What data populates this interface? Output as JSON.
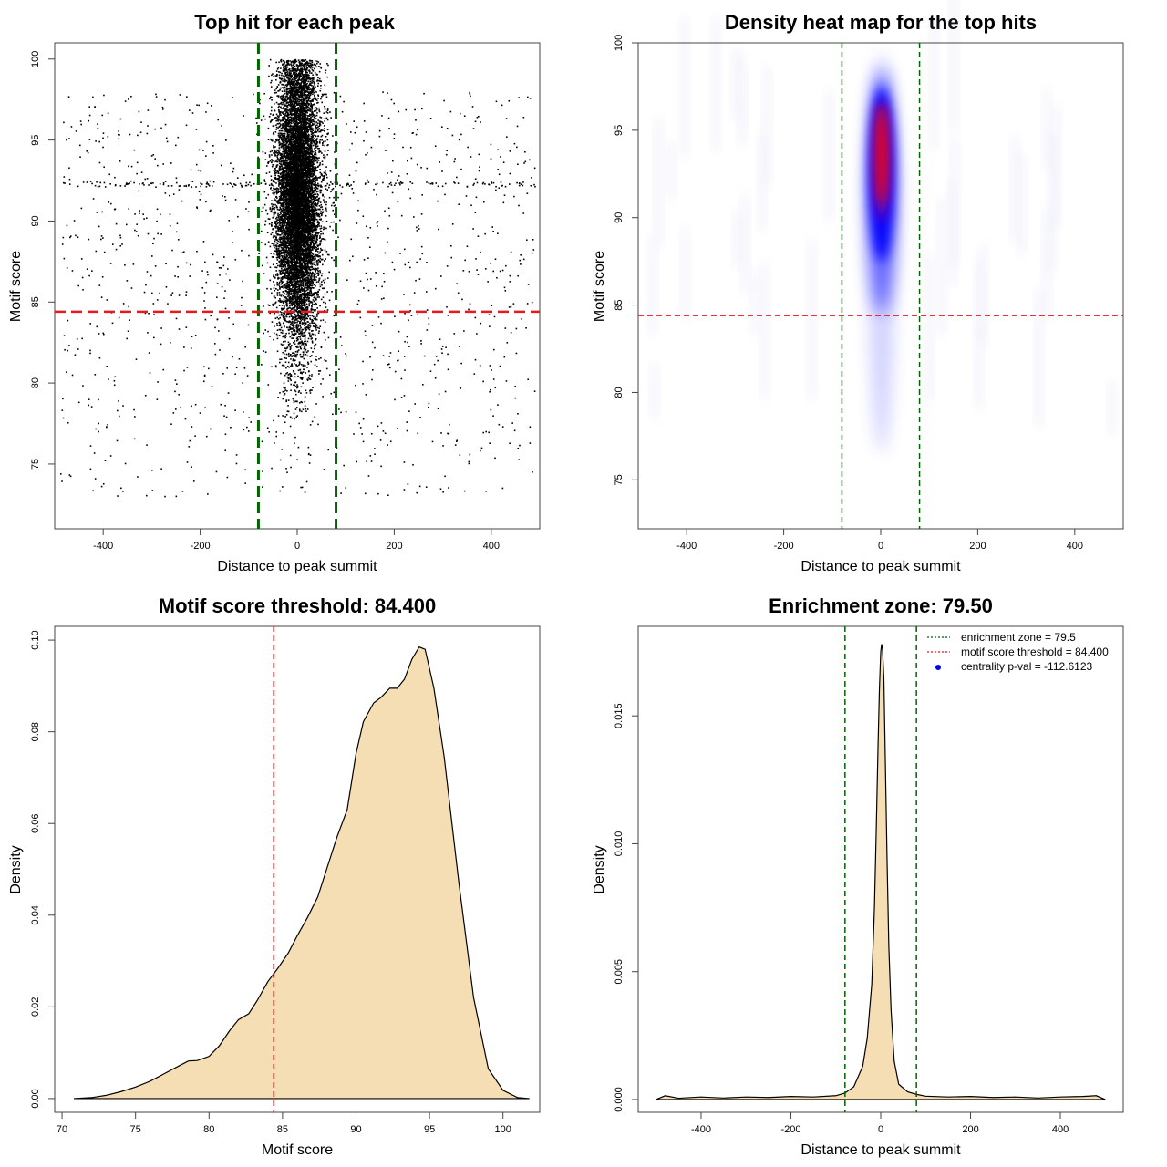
{
  "chart_data": [
    {
      "type": "scatter",
      "title": "Top hit for each peak",
      "xlabel": "Distance to peak summit",
      "ylabel": "Motif score",
      "xlim": [
        -500,
        500
      ],
      "ylim": [
        71,
        101
      ],
      "xticks": [
        -400,
        -200,
        0,
        200,
        400
      ],
      "yticks": [
        75,
        80,
        85,
        90,
        95,
        100
      ],
      "xtick_labels": [
        "-400",
        "-200",
        "0",
        "200",
        "400"
      ],
      "ytick_labels": [
        "75",
        "80",
        "85",
        "90",
        "95",
        "100"
      ],
      "vlines": [
        -80,
        80
      ],
      "hline": 84.4,
      "central_cluster": {
        "x_center": 0,
        "x_sd": 22,
        "y_center": 91.5,
        "y_sd": 4.5,
        "count": 11000
      },
      "background_points": {
        "x_range": [
          -490,
          490
        ],
        "y_range": [
          73,
          98
        ],
        "count": 1300
      },
      "colors": {
        "points": "#000000",
        "vline": "#006400",
        "hline": "#e41a1c"
      }
    },
    {
      "type": "heatmap",
      "title": "Density heat map for the top hits",
      "xlabel": "Distance to peak summit",
      "ylabel": "Motif score",
      "xlim": [
        -500,
        500
      ],
      "ylim": [
        72.2,
        100
      ],
      "xticks": [
        -400,
        -200,
        0,
        200,
        400
      ],
      "yticks": [
        75,
        80,
        85,
        90,
        95,
        100
      ],
      "xtick_labels": [
        "-400",
        "-200",
        "0",
        "200",
        "400"
      ],
      "ytick_labels": [
        "75",
        "80",
        "85",
        "90",
        "95",
        "100"
      ],
      "vlines": [
        -80,
        80
      ],
      "hline": 84.4,
      "hotspot": {
        "x_center": 2,
        "y_center": 93.5,
        "y_min": 76,
        "y_max": 99
      },
      "colors": {
        "low": "#ffffff",
        "mid": "#0000ff",
        "high": "#ff0000",
        "vline": "#006400",
        "hline": "#e41a1c"
      }
    },
    {
      "type": "area",
      "title": "Motif score threshold: 84.400",
      "xlabel": "Motif score",
      "ylabel": "Density",
      "xlim": [
        69.5,
        102.5
      ],
      "ylim": [
        -0.003,
        0.103
      ],
      "xticks": [
        70,
        75,
        80,
        85,
        90,
        95,
        100
      ],
      "yticks": [
        0,
        0.02,
        0.04,
        0.06,
        0.08,
        0.1
      ],
      "xtick_labels": [
        "70",
        "75",
        "80",
        "85",
        "90",
        "95",
        "100"
      ],
      "ytick_labels": [
        "0.00",
        "0.02",
        "0.04",
        "0.06",
        "0.08",
        "0.10"
      ],
      "vlines": [
        84.4
      ],
      "x": [
        70.8,
        72,
        73,
        74,
        75,
        76,
        77,
        78,
        78.6,
        79.2,
        80,
        80.7,
        81.4,
        82,
        82.7,
        83.3,
        84,
        84.7,
        85.4,
        86,
        86.7,
        87.4,
        88,
        88.7,
        89.4,
        90,
        90.5,
        91.2,
        91.7,
        92.3,
        92.8,
        93.3,
        93.8,
        94.3,
        94.7,
        95.3,
        96,
        97,
        98,
        99,
        100,
        101,
        101.8
      ],
      "y": [
        0,
        0.0002,
        0.0007,
        0.0015,
        0.0025,
        0.0038,
        0.0055,
        0.0072,
        0.0082,
        0.0083,
        0.0092,
        0.0115,
        0.0148,
        0.0172,
        0.0185,
        0.0215,
        0.0255,
        0.0285,
        0.0318,
        0.0355,
        0.0395,
        0.044,
        0.05,
        0.057,
        0.063,
        0.0752,
        0.0822,
        0.0863,
        0.0875,
        0.0895,
        0.0895,
        0.0915,
        0.0958,
        0.0985,
        0.098,
        0.0895,
        0.0745,
        0.047,
        0.022,
        0.0065,
        0.0018,
        0.0002,
        0
      ],
      "colors": {
        "fill": "#f5deb3",
        "line": "#000000",
        "vline": "#e41a1c"
      }
    },
    {
      "type": "area",
      "title": "Enrichment zone: 79.50",
      "xlabel": "Distance to peak summit",
      "ylabel": "Density",
      "xlim": [
        -540,
        540
      ],
      "ylim": [
        -0.0005,
        0.0185
      ],
      "xticks": [
        -400,
        -200,
        0,
        200,
        400
      ],
      "yticks": [
        0,
        0.005,
        0.01,
        0.015
      ],
      "xtick_labels": [
        "-400",
        "-200",
        "0",
        "200",
        "400"
      ],
      "ytick_labels": [
        "0.000",
        "0.005",
        "0.010",
        "0.015"
      ],
      "vlines": [
        -79.5,
        79.5
      ],
      "x": [
        -500,
        -480,
        -450,
        -400,
        -350,
        -300,
        -250,
        -200,
        -150,
        -100,
        -80,
        -60,
        -40,
        -30,
        -20,
        -14,
        -10,
        -6,
        -3,
        0,
        2,
        4,
        7,
        10,
        14,
        18,
        23,
        30,
        40,
        60,
        80,
        100,
        150,
        200,
        250,
        300,
        350,
        400,
        450,
        480,
        500
      ],
      "y": [
        0,
        0.00015,
        5e-05,
        0.0001,
        6e-05,
        0.0001,
        8e-05,
        0.00012,
        0.0001,
        0.00015,
        0.00025,
        0.0005,
        0.0013,
        0.0024,
        0.0045,
        0.0075,
        0.0105,
        0.0138,
        0.016,
        0.0175,
        0.0178,
        0.0176,
        0.0165,
        0.0135,
        0.0095,
        0.006,
        0.0035,
        0.0015,
        0.0006,
        0.0003,
        0.0002,
        0.00013,
        0.0001,
        0.00012,
        8e-05,
        0.0001,
        6e-05,
        0.0001,
        0.00012,
        0.00015,
        0
      ],
      "legend": {
        "position": "top-right",
        "entries": [
          {
            "label": "enrichment zone = 79.5",
            "kind": "dotted-line",
            "color": "#006400"
          },
          {
            "label": "motif score threshold = 84.400",
            "kind": "dotted-line",
            "color": "#e41a1c"
          },
          {
            "label": "centrality p-val = -112.6123",
            "kind": "point",
            "color": "#0000ff"
          }
        ]
      },
      "colors": {
        "fill": "#f5deb3",
        "line": "#000000",
        "vline": "#006400"
      }
    }
  ]
}
